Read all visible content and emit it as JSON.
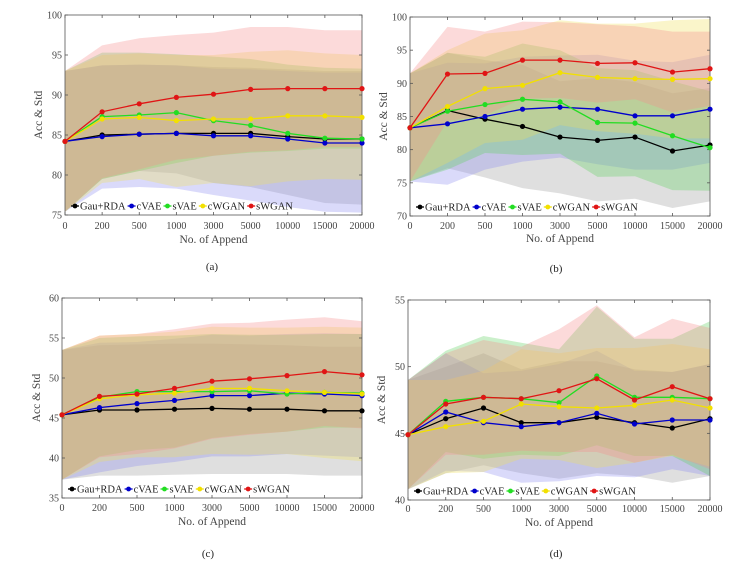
{
  "figure": {
    "captions": [
      "(a)",
      "(b)",
      "(c)",
      "(d)"
    ]
  },
  "chart_data": [
    {
      "type": "line",
      "panel": "(a)",
      "title": "",
      "xlabel": "No. of Append",
      "ylabel": "Acc & Std",
      "categories": [
        "0",
        "200",
        "500",
        "1000",
        "3000",
        "5000",
        "10000",
        "15000",
        "20000"
      ],
      "ylim": [
        75,
        100
      ],
      "yticks": [
        75,
        80,
        85,
        90,
        95,
        100
      ],
      "grid": false,
      "legend": "bottom-left",
      "series": [
        {
          "name": "Gau+RDA",
          "color": "#000000",
          "values": [
            84.2,
            85.0,
            85.1,
            85.2,
            85.2,
            85.2,
            84.8,
            84.5,
            84.5
          ],
          "upper": [
            93.0,
            93.7,
            93.8,
            93.7,
            93.5,
            93.4,
            93.2,
            93.0,
            93.0
          ],
          "lower": [
            75.4,
            79.5,
            80.5,
            80.2,
            79.0,
            78.5,
            77.5,
            76.5,
            76.3
          ]
        },
        {
          "name": "cVAE",
          "color": "#0000cc",
          "values": [
            84.2,
            84.8,
            85.1,
            85.2,
            84.9,
            84.9,
            84.5,
            84.0,
            84.0
          ],
          "upper": [
            93.0,
            93.7,
            93.8,
            93.7,
            93.3,
            93.2,
            93.0,
            92.8,
            92.8
          ],
          "lower": [
            75.4,
            78.3,
            78.5,
            78.3,
            77.5,
            76.8,
            76.0,
            75.4,
            75.3
          ]
        },
        {
          "name": "sVAE",
          "color": "#22dd22",
          "values": [
            84.2,
            87.3,
            87.5,
            87.8,
            86.8,
            86.2,
            85.2,
            84.6,
            84.5
          ],
          "upper": [
            93.0,
            95.3,
            95.3,
            95.1,
            94.8,
            94.5,
            93.8,
            93.4,
            93.3
          ],
          "lower": [
            75.4,
            79.5,
            80.5,
            81.5,
            82.4,
            82.8,
            83.0,
            83.3,
            83.3
          ]
        },
        {
          "name": "cWGAN",
          "color": "#f2e000",
          "values": [
            84.2,
            87.0,
            87.2,
            86.8,
            87.0,
            87.0,
            87.4,
            87.4,
            87.2
          ],
          "upper": [
            93.0,
            95.0,
            95.2,
            95.0,
            95.0,
            95.4,
            95.6,
            95.2,
            95.0
          ],
          "lower": [
            75.4,
            79.0,
            79.5,
            78.5,
            79.0,
            78.6,
            79.2,
            79.5,
            79.4
          ]
        },
        {
          "name": "sWGAN",
          "color": "#e01515",
          "values": [
            84.2,
            87.9,
            88.9,
            89.7,
            90.1,
            90.7,
            90.8,
            90.8,
            90.8
          ],
          "upper": [
            93.0,
            96.2,
            97.1,
            97.5,
            97.8,
            98.5,
            98.5,
            98.1,
            98.1
          ],
          "lower": [
            75.4,
            79.6,
            80.7,
            81.9,
            82.4,
            82.9,
            83.1,
            83.5,
            83.5
          ]
        }
      ]
    },
    {
      "type": "line",
      "panel": "(b)",
      "title": "",
      "xlabel": "No. of Append",
      "ylabel": "Acc & Std",
      "categories": [
        "0",
        "200",
        "500",
        "1000",
        "3000",
        "5000",
        "10000",
        "15000",
        "20000"
      ],
      "ylim": [
        70,
        100
      ],
      "yticks": [
        70,
        75,
        80,
        85,
        90,
        95,
        100
      ],
      "grid": false,
      "legend": "bottom-left",
      "series": [
        {
          "name": "Gau+RDA",
          "color": "#000000",
          "values": [
            83.3,
            85.9,
            84.6,
            83.5,
            81.9,
            81.4,
            81.9,
            79.8,
            80.7
          ],
          "upper": [
            91.5,
            94.6,
            93.5,
            92.8,
            90.3,
            90.8,
            90.2,
            88.5,
            89.3
          ],
          "lower": [
            75.2,
            77.2,
            75.8,
            74.2,
            73.4,
            72.2,
            72.6,
            71.2,
            72.2
          ]
        },
        {
          "name": "cVAE",
          "color": "#0000cc",
          "values": [
            83.3,
            83.9,
            85.0,
            86.1,
            86.4,
            86.1,
            85.1,
            85.1,
            86.1
          ],
          "upper": [
            91.5,
            93.1,
            93.0,
            94.0,
            94.2,
            94.3,
            93.4,
            93.2,
            94.3
          ],
          "lower": [
            75.2,
            74.7,
            77.0,
            78.2,
            78.8,
            77.8,
            77.0,
            77.0,
            78.0
          ]
        },
        {
          "name": "sVAE",
          "color": "#22dd22",
          "values": [
            83.3,
            85.8,
            86.8,
            87.6,
            87.2,
            84.1,
            84.0,
            82.1,
            80.3
          ],
          "upper": [
            91.5,
            94.6,
            94.0,
            96.0,
            95.0,
            92.3,
            92.0,
            90.3,
            88.8
          ],
          "lower": [
            75.2,
            77.0,
            79.5,
            79.2,
            79.4,
            75.9,
            76.0,
            73.9,
            73.8
          ]
        },
        {
          "name": "cWGAN",
          "color": "#f2e000",
          "values": [
            83.3,
            86.5,
            89.2,
            89.7,
            91.6,
            90.9,
            90.7,
            90.6,
            90.7
          ],
          "upper": [
            91.5,
            95.0,
            97.5,
            98.0,
            99.5,
            99.0,
            99.0,
            99.5,
            99.7
          ],
          "lower": [
            75.2,
            78.0,
            81.0,
            81.5,
            83.7,
            82.8,
            82.4,
            81.7,
            81.7
          ]
        },
        {
          "name": "sWGAN",
          "color": "#e01515",
          "values": [
            83.3,
            91.4,
            91.5,
            93.5,
            93.5,
            93.0,
            93.1,
            91.7,
            92.2
          ],
          "upper": [
            91.5,
            98.5,
            97.8,
            99.3,
            99.2,
            98.9,
            98.6,
            97.8,
            97.8
          ],
          "lower": [
            75.2,
            84.3,
            85.2,
            87.7,
            87.8,
            87.1,
            87.6,
            85.6,
            86.6
          ]
        }
      ]
    },
    {
      "type": "line",
      "panel": "(c)",
      "title": "",
      "xlabel": "No. of Append",
      "ylabel": "Acc & Std",
      "categories": [
        "0",
        "200",
        "500",
        "1000",
        "3000",
        "5000",
        "10000",
        "15000",
        "20000"
      ],
      "ylim": [
        35,
        60
      ],
      "yticks": [
        35,
        40,
        45,
        50,
        55,
        60
      ],
      "grid": false,
      "legend": "bottom-left",
      "series": [
        {
          "name": "Gau+RDA",
          "color": "#000000",
          "values": [
            45.4,
            46.0,
            46.0,
            46.1,
            46.2,
            46.1,
            46.1,
            45.9,
            45.9
          ],
          "upper": [
            53.5,
            54.1,
            54.2,
            54.3,
            54.3,
            54.2,
            54.1,
            53.9,
            53.9
          ],
          "lower": [
            37.3,
            37.8,
            37.8,
            37.9,
            38.0,
            38.0,
            38.0,
            37.8,
            37.8
          ]
        },
        {
          "name": "cVAE",
          "color": "#0000cc",
          "values": [
            45.4,
            46.3,
            46.8,
            47.2,
            47.8,
            47.8,
            48.1,
            48.0,
            47.8
          ],
          "upper": [
            53.5,
            54.4,
            54.5,
            54.9,
            55.4,
            55.3,
            55.5,
            55.6,
            55.5
          ],
          "lower": [
            37.3,
            38.2,
            39.0,
            39.5,
            40.2,
            40.2,
            40.5,
            40.3,
            40.1
          ]
        },
        {
          "name": "sVAE",
          "color": "#22dd22",
          "values": [
            45.4,
            47.6,
            48.3,
            48.3,
            48.3,
            48.4,
            48.0,
            48.2,
            48.1
          ],
          "upper": [
            53.5,
            55.0,
            55.2,
            55.3,
            55.5,
            55.4,
            55.4,
            55.5,
            55.5
          ],
          "lower": [
            37.3,
            40.2,
            41.0,
            41.3,
            42.5,
            43.0,
            43.3,
            43.8,
            43.8
          ]
        },
        {
          "name": "cWGAN",
          "color": "#f2e000",
          "values": [
            45.4,
            47.4,
            47.9,
            48.1,
            48.7,
            48.7,
            48.4,
            48.2,
            48.0
          ],
          "upper": [
            53.5,
            55.3,
            55.5,
            55.8,
            56.4,
            56.3,
            56.3,
            56.4,
            56.3
          ],
          "lower": [
            37.3,
            39.5,
            40.1,
            40.1,
            40.5,
            40.4,
            40.5,
            40.0,
            39.6
          ]
        },
        {
          "name": "sWGAN",
          "color": "#e01515",
          "values": [
            45.4,
            47.7,
            48.0,
            48.7,
            49.6,
            49.9,
            50.3,
            50.8,
            50.4
          ],
          "upper": [
            53.5,
            55.3,
            55.5,
            56.1,
            56.8,
            56.9,
            57.3,
            57.6,
            57.1
          ],
          "lower": [
            37.3,
            40.1,
            40.5,
            41.2,
            42.4,
            42.9,
            43.3,
            44.0,
            43.7
          ]
        }
      ]
    },
    {
      "type": "line",
      "panel": "(d)",
      "title": "",
      "xlabel": "No. of Append",
      "ylabel": "Acc & Std",
      "categories": [
        "0",
        "200",
        "500",
        "1000",
        "3000",
        "5000",
        "10000",
        "15000",
        "20000"
      ],
      "ylim": [
        40,
        55
      ],
      "yticks": [
        40,
        45,
        50,
        55
      ],
      "grid": false,
      "legend": "bottom-left",
      "series": [
        {
          "name": "Gau+RDA",
          "color": "#000000",
          "values": [
            44.9,
            46.1,
            46.9,
            45.8,
            45.8,
            46.2,
            45.8,
            45.4,
            46.1
          ],
          "upper": [
            49.0,
            50.0,
            51.0,
            49.8,
            50.4,
            50.4,
            49.8,
            49.6,
            50.2
          ],
          "lower": [
            40.8,
            42.0,
            42.6,
            42.0,
            41.6,
            42.0,
            41.8,
            41.3,
            41.8
          ]
        },
        {
          "name": "cVAE",
          "color": "#0000cc",
          "values": [
            44.9,
            46.6,
            45.8,
            45.5,
            45.8,
            46.5,
            45.7,
            46.0,
            46.0
          ],
          "upper": [
            49.0,
            51.0,
            49.5,
            49.7,
            50.2,
            51.2,
            49.7,
            49.6,
            50.2
          ],
          "lower": [
            40.8,
            42.2,
            42.1,
            41.3,
            41.4,
            41.8,
            41.7,
            42.3,
            41.8
          ]
        },
        {
          "name": "sVAE",
          "color": "#22dd22",
          "values": [
            44.9,
            47.4,
            47.7,
            47.6,
            47.3,
            49.3,
            47.7,
            47.7,
            47.6
          ],
          "upper": [
            49.0,
            51.2,
            52.3,
            51.8,
            51.3,
            54.5,
            52.1,
            52.1,
            53.4
          ],
          "lower": [
            40.8,
            43.6,
            43.1,
            43.4,
            43.3,
            44.1,
            43.3,
            43.3,
            41.8
          ]
        },
        {
          "name": "cWGAN",
          "color": "#f2e000",
          "values": [
            44.9,
            45.5,
            45.9,
            47.2,
            47.0,
            46.9,
            47.1,
            47.5,
            46.9
          ],
          "upper": [
            49.0,
            49.0,
            49.7,
            51.3,
            51.0,
            51.4,
            51.4,
            51.7,
            51.3
          ],
          "lower": [
            40.8,
            42.0,
            42.1,
            43.1,
            43.0,
            42.4,
            42.8,
            43.3,
            42.5
          ]
        },
        {
          "name": "sWGAN",
          "color": "#e01515",
          "values": [
            44.9,
            47.2,
            47.7,
            47.6,
            48.2,
            49.1,
            47.5,
            48.5,
            47.6
          ],
          "upper": [
            49.0,
            51.0,
            52.0,
            51.5,
            52.8,
            54.6,
            52.2,
            53.6,
            52.9
          ],
          "lower": [
            40.8,
            43.4,
            43.4,
            43.7,
            43.6,
            43.6,
            42.8,
            43.4,
            42.3
          ]
        }
      ]
    }
  ]
}
